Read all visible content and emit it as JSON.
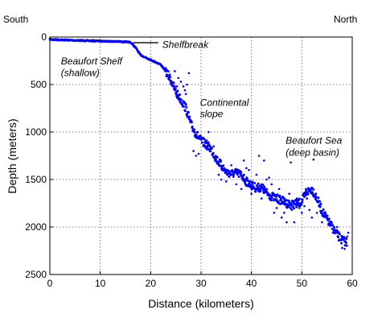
{
  "chart_data": {
    "type": "scatter",
    "xlabel": "Distance (kilometers)",
    "ylabel": "Depth (meters)",
    "xlim": [
      0,
      60
    ],
    "ylim": [
      0,
      2500
    ],
    "y_inverted": true,
    "grid": true,
    "xticks": [
      "0",
      "10",
      "20",
      "30",
      "40",
      "50",
      "60"
    ],
    "yticks": [
      "0",
      "500",
      "1000",
      "1500",
      "2000",
      "2500"
    ],
    "corner_labels": {
      "left": "South",
      "right": "North"
    },
    "annotations": [
      {
        "text": "Shelfbreak",
        "x": 22.3,
        "y": 80
      },
      {
        "text": "Beaufort Shelf",
        "x": 2.2,
        "y": 255
      },
      {
        "text": "(shallow)",
        "x": 2.2,
        "y": 375
      },
      {
        "text": "Continental",
        "x": 29.8,
        "y": 690
      },
      {
        "text": "slope",
        "x": 29.8,
        "y": 810
      },
      {
        "text": "Beaufort Sea",
        "x": 46.8,
        "y": 1090
      },
      {
        "text": "(deep basin)",
        "x": 46.8,
        "y": 1215
      }
    ],
    "shelfbreak_marker": {
      "x": [
        16.5,
        21.5
      ],
      "y": 60
    },
    "series": [
      {
        "color": "#0000ff",
        "profile": [
          [
            0,
            25
          ],
          [
            5,
            35
          ],
          [
            10,
            42
          ],
          [
            14,
            48
          ],
          [
            16,
            55
          ],
          [
            17,
            110
          ],
          [
            18,
            190
          ],
          [
            20,
            240
          ],
          [
            22,
            290
          ],
          [
            23,
            360
          ],
          [
            24,
            450
          ],
          [
            25,
            580
          ],
          [
            26,
            660
          ],
          [
            27,
            750
          ],
          [
            28,
            920
          ],
          [
            29,
            1020
          ],
          [
            30,
            1090
          ],
          [
            31,
            1130
          ],
          [
            32,
            1180
          ],
          [
            33,
            1280
          ],
          [
            34,
            1350
          ],
          [
            35,
            1420
          ],
          [
            36,
            1440
          ],
          [
            37,
            1430
          ],
          [
            38,
            1450
          ],
          [
            39,
            1520
          ],
          [
            40,
            1560
          ],
          [
            41,
            1590
          ],
          [
            42,
            1580
          ],
          [
            43,
            1640
          ],
          [
            44,
            1680
          ],
          [
            45,
            1700
          ],
          [
            46,
            1720
          ],
          [
            47,
            1750
          ],
          [
            48,
            1760
          ],
          [
            49,
            1760
          ],
          [
            50,
            1730
          ],
          [
            51,
            1630
          ],
          [
            52,
            1600
          ],
          [
            53,
            1700
          ],
          [
            54,
            1830
          ],
          [
            55,
            1920
          ],
          [
            56,
            2000
          ],
          [
            57,
            2080
          ],
          [
            58,
            2140
          ],
          [
            59,
            2160
          ]
        ],
        "scatter_points": [
          [
            25.5,
            430
          ],
          [
            26,
            470
          ],
          [
            26.5,
            520
          ],
          [
            27,
            600
          ],
          [
            27.2,
            500
          ],
          [
            28.5,
            1200
          ],
          [
            29,
            1250
          ],
          [
            29.5,
            1230
          ],
          [
            31.5,
            1000
          ],
          [
            32.5,
            1150
          ],
          [
            33,
            1300
          ],
          [
            33.5,
            1450
          ],
          [
            34,
            1500
          ],
          [
            35,
            1520
          ],
          [
            36,
            1350
          ],
          [
            37,
            1550
          ],
          [
            38,
            1600
          ],
          [
            38.5,
            1300
          ],
          [
            39.5,
            1400
          ],
          [
            40,
            1650
          ],
          [
            41,
            1450
          ],
          [
            42,
            1700
          ],
          [
            42.5,
            1300
          ],
          [
            43,
            1500
          ],
          [
            44,
            1550
          ],
          [
            44.5,
            1850
          ],
          [
            45,
            1800
          ],
          [
            45.5,
            1600
          ],
          [
            46,
            1900
          ],
          [
            46.5,
            1850
          ],
          [
            47,
            1950
          ],
          [
            47.5,
            1650
          ],
          [
            48,
            1820
          ],
          [
            48.5,
            1950
          ],
          [
            49,
            1700
          ],
          [
            49.5,
            1800
          ],
          [
            50,
            1850
          ],
          [
            50.5,
            1780
          ],
          [
            51,
            1700
          ],
          [
            51.5,
            1820
          ],
          [
            52,
            1900
          ],
          [
            52.3,
            1290
          ],
          [
            53,
            1850
          ],
          [
            54,
            1950
          ],
          [
            55,
            1880
          ],
          [
            57,
            2000
          ],
          [
            58,
            2220
          ],
          [
            58.5,
            2230
          ],
          [
            59,
            2100
          ],
          [
            59.2,
            2060
          ],
          [
            30.5,
            1150
          ],
          [
            24.8,
            360
          ],
          [
            26.8,
            560
          ],
          [
            27.6,
            380
          ],
          [
            25.2,
            520
          ],
          [
            39,
            1380
          ],
          [
            43.5,
            1480
          ],
          [
            47.8,
            1320
          ],
          [
            50.8,
            1600
          ],
          [
            41.5,
            1250
          ]
        ]
      }
    ]
  }
}
